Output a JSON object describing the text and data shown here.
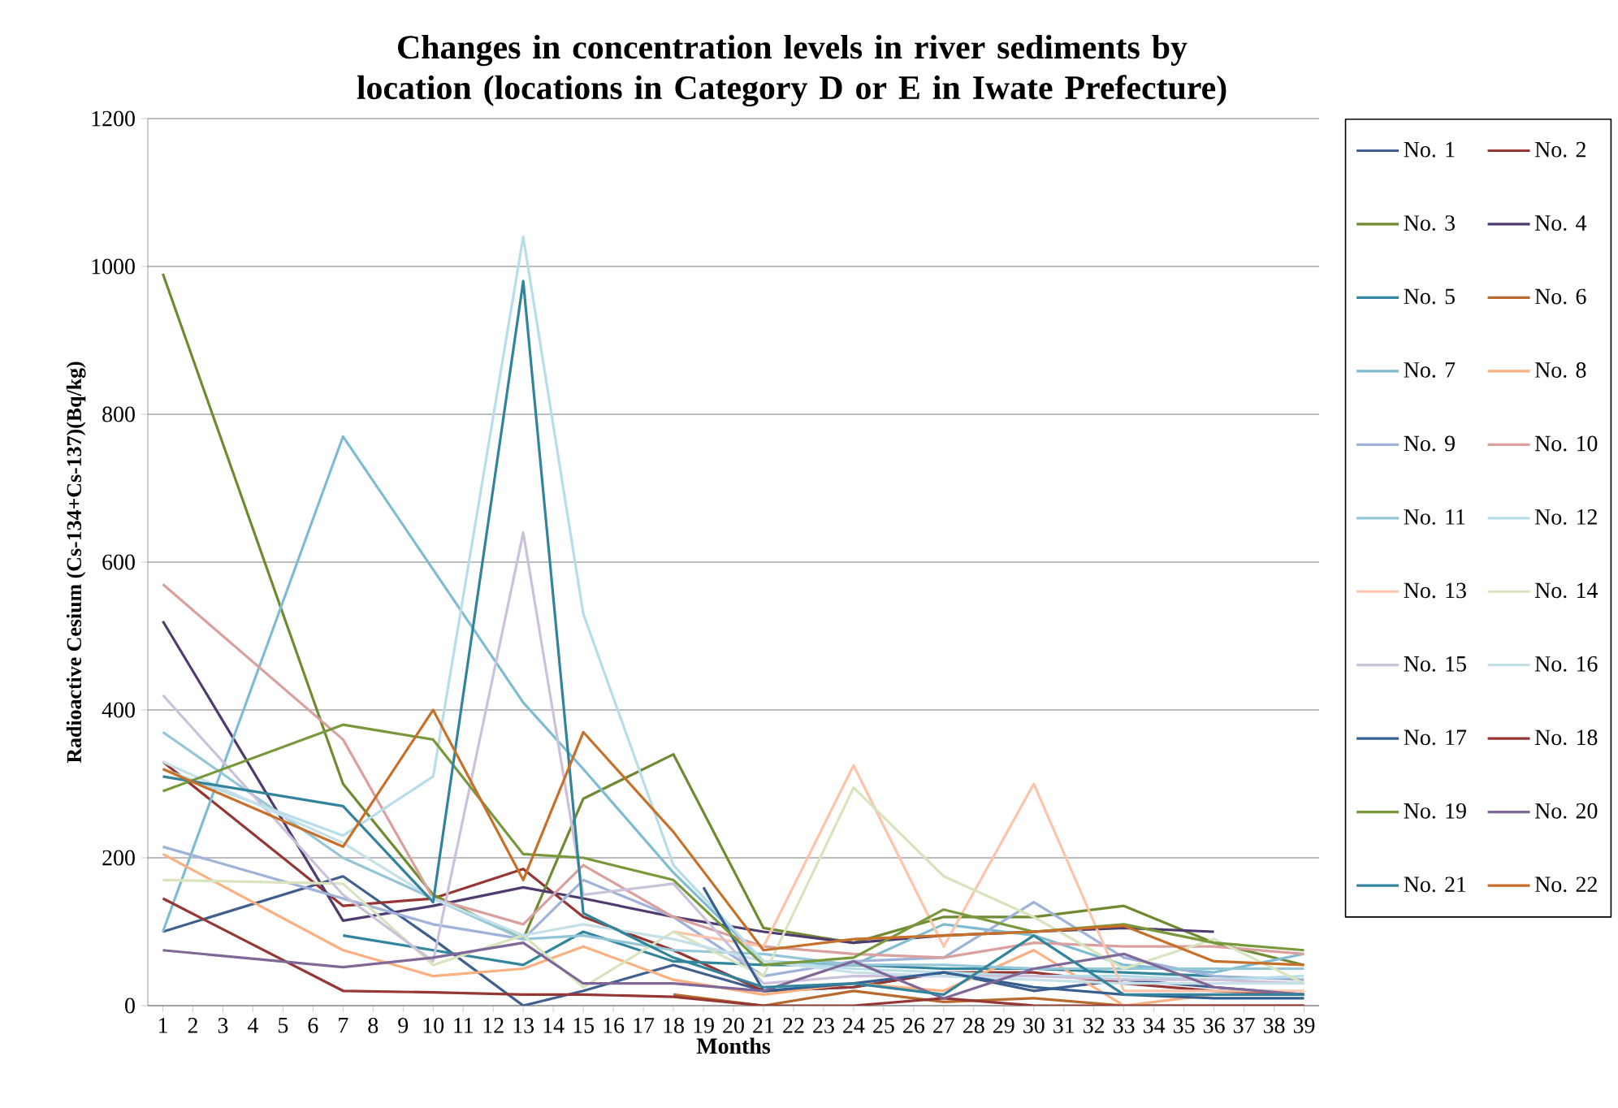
{
  "chart_data": {
    "type": "line",
    "title": "Changes in concentration levels in river sediments by location (locations in Category D or E in Iwate Prefecture)",
    "xlabel": "Months",
    "ylabel": "Radioactive Cesium (Cs-134+Cs-137)(Bq/kg)",
    "xlim": [
      0.5,
      39.5
    ],
    "xticks": [
      1,
      2,
      3,
      4,
      5,
      6,
      7,
      8,
      9,
      10,
      11,
      12,
      13,
      14,
      15,
      16,
      17,
      18,
      19,
      20,
      21,
      22,
      23,
      24,
      25,
      26,
      27,
      28,
      29,
      30,
      31,
      32,
      33,
      34,
      35,
      36,
      37,
      38,
      39
    ],
    "ylim": [
      0,
      1200
    ],
    "yticks": [
      0,
      200,
      400,
      600,
      800,
      1000,
      1200
    ],
    "grid": "y",
    "legend": "right",
    "series": [
      {
        "name": "No. 1",
        "color": "#3f5f8f",
        "x": [
          1,
          7,
          10,
          13,
          15,
          18,
          21,
          24,
          27,
          30,
          33,
          36,
          39
        ],
        "values": [
          100,
          175,
          90,
          0,
          20,
          55,
          20,
          25,
          45,
          20,
          35,
          25,
          15
        ]
      },
      {
        "name": "No. 2",
        "color": "#943634",
        "x": [
          1,
          7,
          10,
          13,
          15,
          18,
          21,
          24,
          27,
          30,
          33,
          36,
          39
        ],
        "values": [
          330,
          135,
          145,
          185,
          120,
          75,
          20,
          25,
          45,
          45,
          30,
          20,
          15
        ]
      },
      {
        "name": "No. 3",
        "color": "#6f8a30",
        "x": [
          1,
          7,
          10,
          13,
          15,
          18,
          21,
          24,
          27,
          30,
          33,
          36,
          39
        ],
        "values": [
          990,
          300,
          150,
          90,
          280,
          340,
          105,
          85,
          120,
          120,
          135,
          85,
          55
        ]
      },
      {
        "name": "No. 4",
        "color": "#4f3b6e",
        "x": [
          1,
          7,
          10,
          13,
          15,
          18,
          21,
          24,
          27,
          30,
          33,
          36
        ],
        "values": [
          520,
          115,
          135,
          160,
          145,
          120,
          100,
          85,
          95,
          100,
          105,
          100
        ]
      },
      {
        "name": "No. 5",
        "color": "#31859c",
        "x": [
          7,
          10,
          13,
          15,
          18,
          21,
          24,
          27,
          30,
          33,
          36
        ],
        "values": [
          95,
          75,
          55,
          100,
          60,
          55,
          55,
          50,
          50,
          45,
          40
        ]
      },
      {
        "name": "No. 6",
        "color": "#b76a2e",
        "x": [
          18,
          21,
          24,
          27,
          30,
          33,
          36,
          39
        ],
        "values": [
          15,
          0,
          20,
          5,
          10,
          0,
          0,
          0
        ]
      },
      {
        "name": "No. 7",
        "color": "#7fbcd2",
        "x": [
          1,
          7,
          10,
          13,
          15,
          18,
          21,
          24,
          27,
          30,
          33,
          36,
          39
        ],
        "values": [
          100,
          770,
          590,
          410,
          320,
          180,
          60,
          55,
          110,
          95,
          55,
          45,
          70
        ]
      },
      {
        "name": "No. 8",
        "color": "#fab080",
        "x": [
          1,
          7,
          10,
          13,
          15,
          18,
          21,
          24,
          27,
          30,
          33,
          36,
          39
        ],
        "values": [
          205,
          75,
          40,
          50,
          80,
          35,
          15,
          30,
          20,
          75,
          0,
          15,
          15
        ]
      },
      {
        "name": "No. 9",
        "color": "#9fb3d8",
        "x": [
          1,
          7,
          10,
          13,
          15,
          18,
          21,
          24,
          27,
          30,
          33,
          36,
          39
        ],
        "values": [
          215,
          145,
          110,
          90,
          170,
          120,
          40,
          60,
          65,
          140,
          65,
          40,
          35
        ]
      },
      {
        "name": "No. 10",
        "color": "#d9a09e",
        "x": [
          1,
          7,
          10,
          13,
          15,
          18,
          21,
          24,
          27,
          30,
          33,
          36,
          39
        ],
        "values": [
          570,
          360,
          145,
          110,
          190,
          120,
          80,
          70,
          65,
          85,
          80,
          80,
          70
        ]
      },
      {
        "name": "No. 11",
        "color": "#93c6d6",
        "x": [
          1,
          7,
          10,
          13,
          15,
          18,
          21,
          24,
          27,
          30,
          33,
          36,
          39
        ],
        "values": [
          370,
          200,
          145,
          90,
          95,
          75,
          70,
          55,
          55,
          50,
          50,
          50,
          50
        ]
      },
      {
        "name": "No. 12",
        "color": "#b7dde8",
        "x": [
          1,
          7,
          10,
          13,
          15,
          18,
          21,
          24,
          27,
          30,
          33,
          36,
          39
        ],
        "values": [
          320,
          230,
          310,
          1040,
          530,
          190,
          60,
          50,
          45,
          40,
          40,
          35,
          40
        ]
      },
      {
        "name": "No. 13",
        "color": "#fcc4aa",
        "x": [
          18,
          21,
          24,
          27,
          30,
          33,
          36,
          39
        ],
        "values": [
          100,
          80,
          325,
          80,
          300,
          20,
          20,
          20
        ]
      },
      {
        "name": "No. 14",
        "color": "#d7e4bd",
        "x": [
          1,
          7,
          10,
          13,
          15,
          18,
          21,
          24,
          27,
          30,
          33,
          36,
          39
        ],
        "values": [
          170,
          165,
          55,
          95,
          25,
          100,
          40,
          295,
          175,
          120,
          50,
          90,
          30
        ]
      },
      {
        "name": "No. 15",
        "color": "#ccc1da",
        "x": [
          1,
          7,
          10,
          13,
          15,
          18,
          21,
          24,
          27,
          30,
          33,
          36,
          39
        ],
        "values": [
          420,
          150,
          60,
          640,
          150,
          165,
          30,
          40,
          40,
          40,
          35,
          35,
          30
        ]
      },
      {
        "name": "No. 16",
        "color": "#c6e0ea",
        "x": [
          1,
          7,
          10,
          13,
          15,
          18,
          21,
          24,
          27,
          30,
          33,
          36,
          39
        ],
        "values": [
          330,
          220,
          145,
          95,
          110,
          90,
          60,
          45,
          40,
          35,
          30,
          30,
          30
        ]
      },
      {
        "name": "No. 17",
        "color": "#365f91",
        "x": [
          19,
          21,
          24,
          27,
          30,
          33,
          36,
          39
        ],
        "values": [
          160,
          20,
          30,
          45,
          25,
          15,
          10,
          10
        ]
      },
      {
        "name": "No. 18",
        "color": "#953735",
        "x": [
          1,
          7,
          10,
          13,
          15,
          18,
          21,
          24,
          27,
          30,
          33,
          36,
          39
        ],
        "values": [
          145,
          20,
          18,
          15,
          15,
          12,
          0,
          0,
          10,
          0,
          0,
          0,
          0
        ]
      },
      {
        "name": "No. 19",
        "color": "#77993c",
        "x": [
          1,
          7,
          10,
          13,
          15,
          18,
          21,
          24,
          27,
          30,
          33,
          36,
          39
        ],
        "values": [
          290,
          380,
          360,
          205,
          200,
          170,
          55,
          65,
          130,
          100,
          110,
          85,
          75
        ]
      },
      {
        "name": "No. 20",
        "color": "#7f6797",
        "x": [
          1,
          7,
          10,
          13,
          15,
          18,
          21,
          24,
          27,
          30,
          33,
          36,
          39
        ],
        "values": [
          75,
          52,
          65,
          85,
          30,
          30,
          20,
          60,
          10,
          50,
          70,
          25,
          15
        ]
      },
      {
        "name": "No. 21",
        "color": "#31849b",
        "x": [
          1,
          7,
          10,
          13,
          15,
          18,
          21,
          24,
          27,
          30,
          33,
          36,
          39
        ],
        "values": [
          310,
          270,
          140,
          980,
          125,
          65,
          25,
          30,
          15,
          95,
          15,
          15,
          15
        ]
      },
      {
        "name": "No. 22",
        "color": "#c7702a",
        "x": [
          1,
          7,
          10,
          13,
          15,
          18,
          21,
          24,
          27,
          30,
          33,
          36,
          39
        ],
        "values": [
          320,
          215,
          400,
          170,
          370,
          235,
          75,
          90,
          95,
          100,
          108,
          60,
          55
        ]
      }
    ]
  }
}
